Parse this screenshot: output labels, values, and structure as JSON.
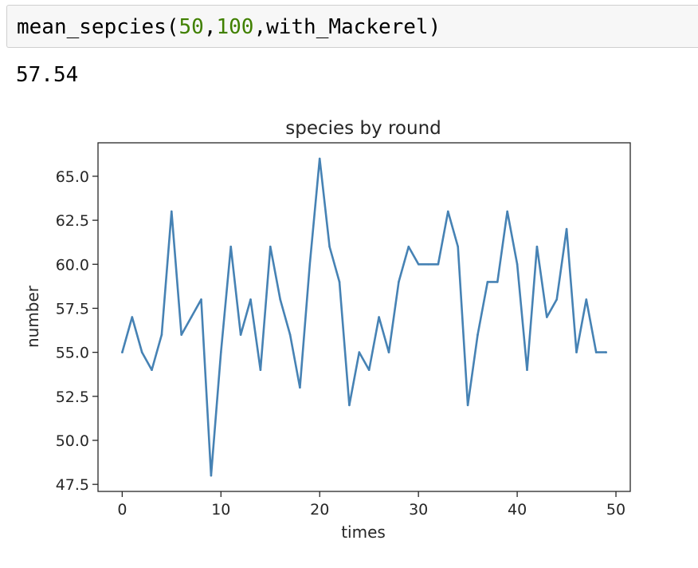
{
  "code_cell": {
    "function_name": "mean_sepcies",
    "open_paren": "(",
    "arg1": "50",
    "comma1": ",",
    "arg2": "100",
    "comma2": ",",
    "arg3": "with_Mackerel",
    "close_paren": ")"
  },
  "output": {
    "text": "57.54"
  },
  "chart_data": {
    "type": "line",
    "title": "species by round",
    "xlabel": "times",
    "ylabel": "number",
    "xlim": [
      -2.45,
      51.45
    ],
    "ylim": [
      47.1,
      66.9
    ],
    "xticks": [
      0,
      10,
      20,
      30,
      40,
      50
    ],
    "xtick_labels": [
      "0",
      "10",
      "20",
      "30",
      "40",
      "50"
    ],
    "yticks": [
      47.5,
      50.0,
      52.5,
      55.0,
      57.5,
      60.0,
      62.5,
      65.0
    ],
    "ytick_labels": [
      "47.5",
      "50.0",
      "52.5",
      "55.0",
      "57.5",
      "60.0",
      "62.5",
      "65.0"
    ],
    "grid": false,
    "line_color": "#4682b4",
    "series": [
      {
        "x": [
          0,
          1,
          2,
          3,
          4,
          5,
          6,
          7,
          8,
          9,
          10,
          11,
          12,
          13,
          14,
          15,
          16,
          17,
          18,
          19,
          20,
          21,
          22,
          23,
          24,
          25,
          26,
          27,
          28,
          29,
          30,
          31,
          32,
          33,
          34,
          35,
          36,
          37,
          38,
          39,
          40,
          41,
          42,
          43,
          44,
          45,
          46,
          47,
          48,
          49
        ],
        "values": [
          55,
          57,
          55,
          54,
          56,
          63,
          56,
          57,
          58,
          48,
          55,
          61,
          56,
          58,
          54,
          61,
          58,
          56,
          53,
          60,
          66,
          61,
          59,
          52,
          55,
          54,
          57,
          55,
          59,
          61,
          60,
          60,
          60,
          63,
          61,
          52,
          56,
          59,
          59,
          63,
          60,
          54,
          61,
          57,
          58,
          62,
          55,
          58,
          55,
          55
        ]
      }
    ]
  }
}
